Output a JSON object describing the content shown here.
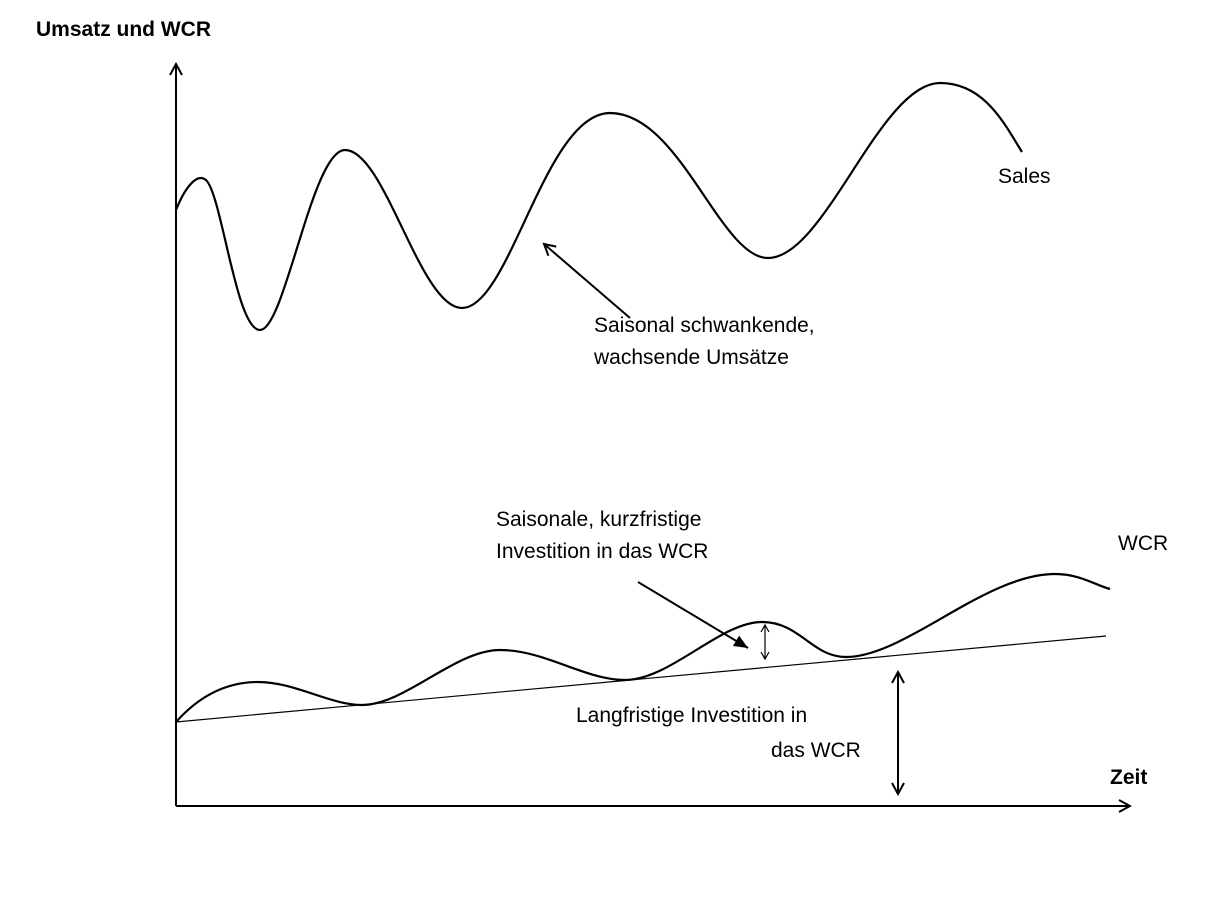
{
  "axes": {
    "y_title": "Umsatz und WCR",
    "x_title": "Zeit"
  },
  "curves": {
    "sales_label": "Sales",
    "wcr_label": "WCR"
  },
  "annotations": {
    "sales_note": [
      "Saisonal schwankende,",
      "wachsende Umsätze"
    ],
    "seasonal_wcr_note": [
      "Saisonale, kurzfristige",
      "Investition in das WCR"
    ],
    "longterm_wcr_note": [
      "Langfristige Investition in",
      "das WCR"
    ]
  },
  "colors": {
    "line": "#000000",
    "background": "#ffffff"
  }
}
